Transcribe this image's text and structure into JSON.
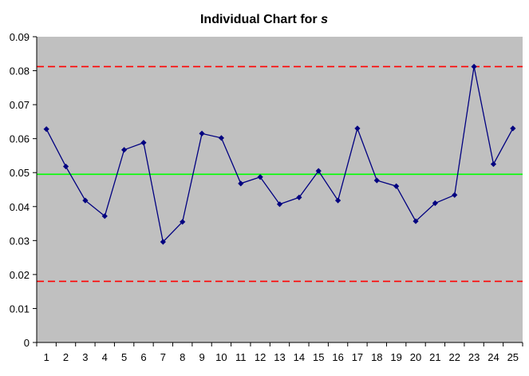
{
  "chart_data": {
    "type": "line",
    "title": "Individual Chart for ",
    "title_variable": "s",
    "xlabel": "",
    "ylabel": "",
    "x": [
      1,
      2,
      3,
      4,
      5,
      6,
      7,
      8,
      9,
      10,
      11,
      12,
      13,
      14,
      15,
      16,
      17,
      18,
      19,
      20,
      21,
      22,
      23,
      24,
      25
    ],
    "series": [
      {
        "values": [
          0.0628,
          0.0518,
          0.0418,
          0.0372,
          0.0567,
          0.0588,
          0.0296,
          0.0355,
          0.0615,
          0.0602,
          0.0468,
          0.0487,
          0.0407,
          0.0427,
          0.0505,
          0.0418,
          0.063,
          0.0477,
          0.046,
          0.0357,
          0.041,
          0.0434,
          0.0812,
          0.0525,
          0.063
        ],
        "color": "#000080"
      }
    ],
    "reference_lines": [
      {
        "value": 0.0812,
        "color": "#ff0000",
        "style": "dashed"
      },
      {
        "value": 0.0495,
        "color": "#00ff00",
        "style": "solid"
      },
      {
        "value": 0.018,
        "color": "#ff0000",
        "style": "dashed"
      }
    ],
    "ylim": [
      0,
      0.09
    ],
    "yticks": [
      "0",
      "0.01",
      "0.02",
      "0.03",
      "0.04",
      "0.05",
      "0.06",
      "0.07",
      "0.08",
      "0.09"
    ],
    "xticks": [
      "1",
      "2",
      "3",
      "4",
      "5",
      "6",
      "7",
      "8",
      "9",
      "10",
      "11",
      "12",
      "13",
      "14",
      "15",
      "16",
      "17",
      "18",
      "19",
      "20",
      "21",
      "22",
      "23",
      "24",
      "25"
    ],
    "plot_background": "#c0c0c0",
    "grid": false,
    "legend": "none"
  }
}
